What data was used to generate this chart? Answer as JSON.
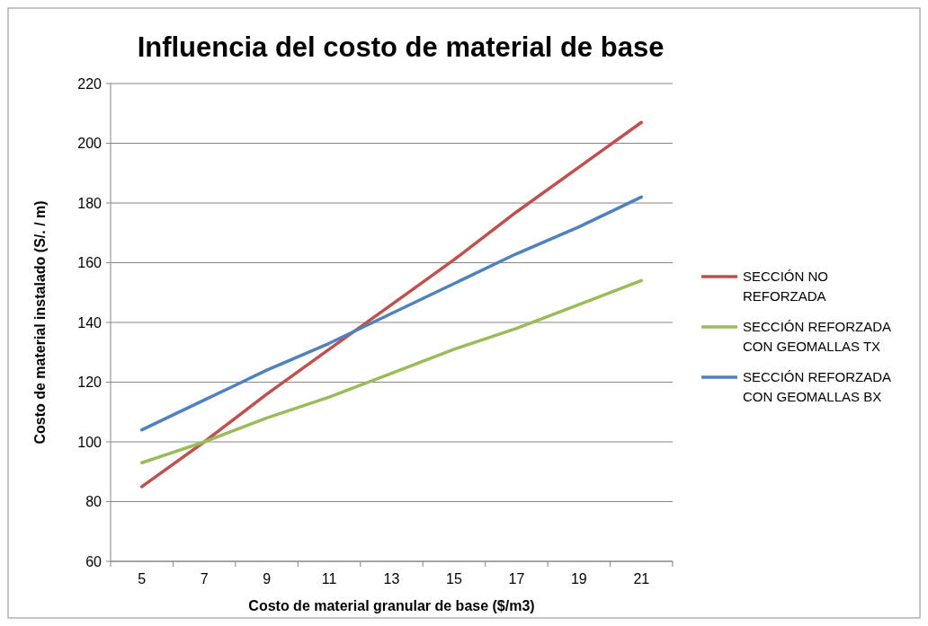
{
  "chart_data": {
    "type": "line",
    "title": "Influencia del costo de material de base",
    "xlabel": "Costo de material granular de base ($/m3)",
    "ylabel": "Costo de material instalado (S/. / m)",
    "categories": [
      "5",
      "7",
      "9",
      "11",
      "13",
      "15",
      "17",
      "19",
      "21"
    ],
    "series": [
      {
        "name": "SECCIÓN NO REFORZADA",
        "color": "#c0504d",
        "values": [
          85,
          100,
          116,
          131,
          146,
          161,
          177,
          192,
          207
        ]
      },
      {
        "name": "SECCIÓN REFORZADA CON GEOMALLAS TX",
        "color": "#9bbb59",
        "values": [
          93,
          100,
          108,
          115,
          123,
          131,
          138,
          146,
          154
        ]
      },
      {
        "name": "SECCIÓN REFORZADA CON GEOMALLAS BX",
        "color": "#4f81bd",
        "values": [
          104,
          114,
          124,
          133,
          143,
          153,
          163,
          172,
          182
        ]
      }
    ],
    "ylim": [
      60,
      220
    ],
    "yticks": [
      60,
      80,
      100,
      120,
      140,
      160,
      180,
      200,
      220
    ],
    "grid": "y",
    "legend": "right",
    "line_style": "solid"
  }
}
